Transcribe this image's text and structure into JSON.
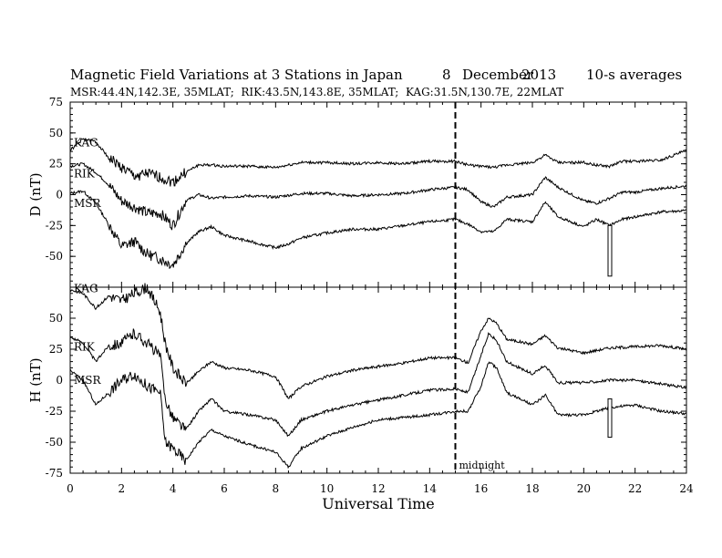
{
  "chart_data": {
    "type": "line",
    "title_left": "Magnetic Field Variations at 3 Stations in Japan",
    "title_day": "8",
    "title_month": "December",
    "title_year": "2013",
    "title_right": "10-s averages",
    "subtitle": "MSR:44.4N,142.3E, 35MLAT;  RIK:43.5N,143.8E, 35MLAT;  KAG:31.5N,130.7E, 22MLAT",
    "xlabel": "Universal Time",
    "xlim": [
      0,
      24
    ],
    "xticks": [
      0,
      2,
      4,
      6,
      8,
      10,
      12,
      14,
      16,
      18,
      20,
      22,
      24
    ],
    "midnight_label": "midnight",
    "midnight_x": 15,
    "panels": [
      {
        "ylabel": "D (nT)",
        "ylim": [
          -75,
          75
        ],
        "yticks": [
          75,
          50,
          25,
          0,
          -25,
          -50
        ],
        "series": [
          {
            "name": "KAG",
            "x": [
              0,
              0.5,
              1,
              1.5,
              2,
              2.5,
              3,
              3.5,
              4,
              4.5,
              5,
              5.5,
              6,
              7,
              8,
              9,
              10,
              11,
              12,
              13,
              14,
              15,
              15.5,
              16,
              16.5,
              17,
              18,
              18.5,
              19,
              20,
              20.5,
              21,
              21.5,
              22,
              23,
              24
            ],
            "y": [
              36,
              45,
              43,
              30,
              22,
              15,
              17,
              14,
              10,
              18,
              24,
              24,
              23,
              23,
              22,
              26,
              26,
              25,
              26,
              25,
              27,
              27,
              24,
              23,
              22,
              24,
              26,
              32,
              26,
              26,
              24,
              23,
              27,
              27,
              28,
              36
            ]
          },
          {
            "name": "RIK",
            "x": [
              0,
              0.5,
              1,
              1.5,
              2,
              2.5,
              3,
              3.5,
              4,
              4.5,
              5,
              5.5,
              6,
              7,
              8,
              9,
              10,
              11,
              12,
              13,
              14,
              15,
              15.5,
              16,
              16.5,
              17,
              18,
              18.5,
              19,
              20,
              20.5,
              21,
              21.5,
              22,
              23,
              24
            ],
            "y": [
              23,
              25,
              18,
              8,
              -5,
              -10,
              -15,
              -15,
              -25,
              -5,
              0,
              -3,
              -2,
              -1,
              -2,
              1,
              1,
              -1,
              0,
              1,
              4,
              6,
              4,
              -6,
              -10,
              -2,
              0,
              14,
              6,
              -5,
              -7,
              -3,
              2,
              2,
              5,
              7
            ]
          },
          {
            "name": "MSR",
            "x": [
              0,
              0.5,
              1,
              1.5,
              2,
              2.5,
              3,
              3.5,
              4,
              4.5,
              5,
              5.5,
              6,
              7,
              8,
              8.5,
              9,
              10,
              11,
              12,
              13,
              14,
              15,
              15.5,
              16,
              16.5,
              17,
              18,
              18.5,
              19,
              20,
              20.5,
              21,
              21.5,
              22,
              23,
              24
            ],
            "y": [
              1,
              3,
              -7,
              -24,
              -42,
              -38,
              -48,
              -52,
              -57,
              -40,
              -30,
              -26,
              -33,
              -38,
              -43,
              -40,
              -35,
              -31,
              -28,
              -28,
              -25,
              -22,
              -20,
              -24,
              -30,
              -30,
              -20,
              -22,
              -6,
              -18,
              -26,
              -20,
              -25,
              -20,
              -18,
              -14,
              -13
            ]
          }
        ],
        "label_y": {
          "KAG": 42,
          "RIK": 17,
          "MSR": -7
        }
      },
      {
        "ylabel": "H (nT)",
        "ylim": [
          -75,
          75
        ],
        "yticks": [
          50,
          25,
          0,
          -25,
          -50,
          -75
        ],
        "series": [
          {
            "name": "KAG",
            "x": [
              0,
              0.5,
              1,
              1.5,
              2,
              2.5,
              3,
              3.5,
              3.7,
              4,
              4.5,
              5,
              5.5,
              6,
              7,
              8,
              8.5,
              9,
              10,
              11,
              12,
              13,
              14,
              15,
              15.5,
              16,
              16.3,
              16.6,
              17,
              18,
              18.5,
              19,
              20,
              21,
              22,
              23,
              24
            ],
            "y": [
              73,
              70,
              58,
              68,
              64,
              70,
              75,
              55,
              30,
              10,
              -3,
              7,
              15,
              10,
              8,
              3,
              -15,
              -5,
              3,
              8,
              11,
              14,
              18,
              18,
              14,
              40,
              50,
              46,
              33,
              29,
              36,
              26,
              22,
              26,
              27,
              28,
              25
            ]
          },
          {
            "name": "RIK",
            "x": [
              0,
              0.5,
              1,
              1.5,
              2,
              2.5,
              3,
              3.5,
              3.7,
              4,
              4.5,
              5,
              5.5,
              6,
              7,
              8,
              8.5,
              9,
              10,
              11,
              12,
              13,
              14,
              15,
              15.5,
              16,
              16.3,
              16.6,
              17,
              18,
              18.5,
              19,
              20,
              21,
              22,
              23,
              24
            ],
            "y": [
              35,
              30,
              15,
              28,
              30,
              38,
              30,
              20,
              -15,
              -30,
              -40,
              -25,
              -15,
              -25,
              -28,
              -32,
              -45,
              -32,
              -25,
              -20,
              -16,
              -12,
              -8,
              -7,
              -10,
              20,
              38,
              32,
              15,
              5,
              12,
              -2,
              -2,
              0,
              0,
              -3,
              -6
            ]
          },
          {
            "name": "MSR",
            "x": [
              0,
              0.5,
              1,
              1.5,
              2,
              2.5,
              3,
              3.5,
              3.7,
              4,
              4.5,
              5,
              5.5,
              6,
              7,
              8,
              8.5,
              9,
              10,
              11,
              12,
              13,
              14,
              15,
              15.5,
              16,
              16.3,
              16.6,
              17,
              18,
              18.5,
              19,
              20,
              21,
              22,
              23,
              24
            ],
            "y": [
              8,
              0,
              -20,
              -10,
              0,
              5,
              -5,
              -10,
              -50,
              -55,
              -65,
              -50,
              -40,
              -45,
              -52,
              -58,
              -70,
              -55,
              -45,
              -38,
              -32,
              -30,
              -28,
              -25,
              -25,
              -5,
              15,
              10,
              -10,
              -20,
              -12,
              -28,
              -28,
              -22,
              -20,
              -25,
              -27
            ]
          }
        ],
        "label_y": {
          "KAG": 74,
          "RIK": 27,
          "MSR": 0
        }
      }
    ],
    "spikes": [
      {
        "panel": 0,
        "x": 21,
        "from": -25,
        "to": -66
      },
      {
        "panel": 1,
        "x": 21,
        "from": -15,
        "to": -46
      }
    ],
    "line_color": "#000000",
    "dash_color": "#000000"
  }
}
